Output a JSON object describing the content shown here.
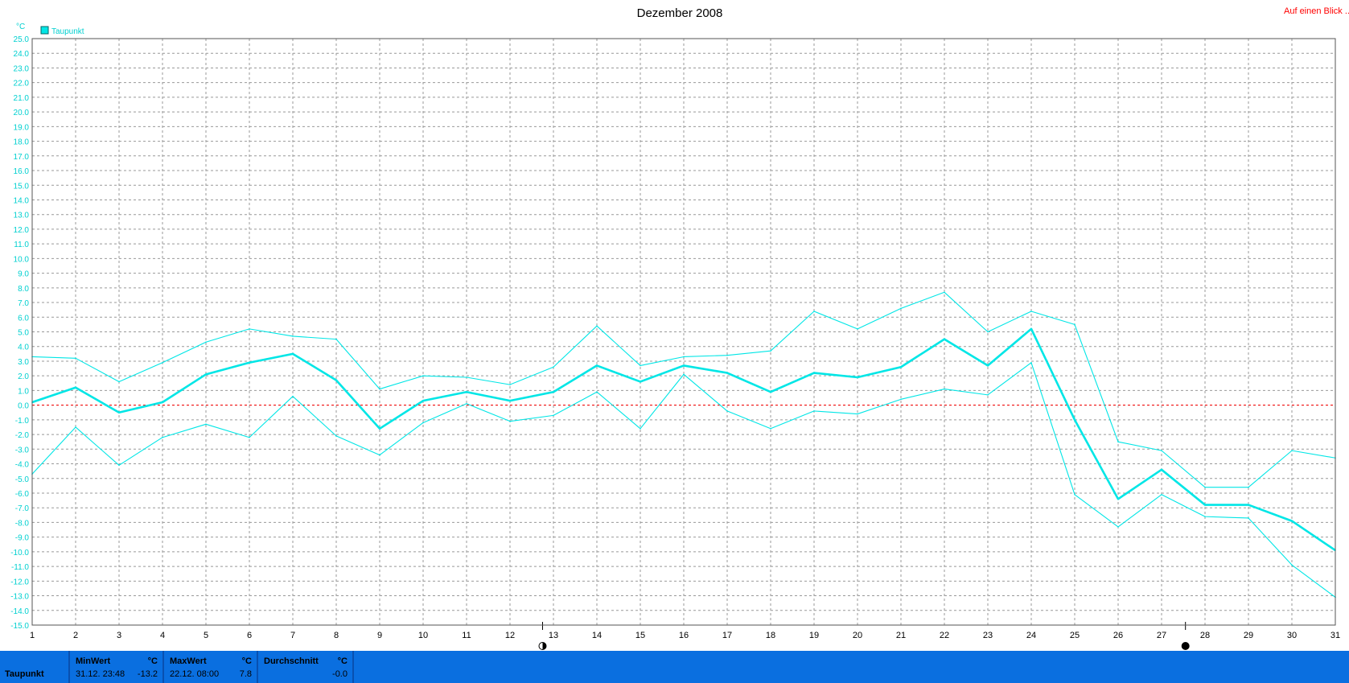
{
  "header": {
    "title": "Dezember 2008",
    "link_label": "Auf einen Blick ...",
    "unit_label": "°C",
    "legend_label": "Taupunkt"
  },
  "colors": {
    "series": "#00e6e6",
    "axis_text": "#00d0d0",
    "zero_line": "#ff0000",
    "link": "#ff0000",
    "stats_bar": "#0a6fe0"
  },
  "chart_data": {
    "type": "line",
    "title": "Dezember 2008",
    "ylabel": "°C",
    "ylim": [
      -15,
      25
    ],
    "xlim": [
      1,
      31
    ],
    "x": [
      1,
      2,
      3,
      4,
      5,
      6,
      7,
      8,
      9,
      10,
      11,
      12,
      13,
      14,
      15,
      16,
      17,
      18,
      19,
      20,
      21,
      22,
      23,
      24,
      25,
      26,
      27,
      28,
      29,
      30,
      31
    ],
    "y_ticks": [
      "25.0",
      "24.0",
      "23.0",
      "22.0",
      "21.0",
      "20.0",
      "19.0",
      "18.0",
      "17.0",
      "16.0",
      "15.0",
      "14.0",
      "13.0",
      "12.0",
      "11.0",
      "10.0",
      "9.0",
      "8.0",
      "7.0",
      "6.0",
      "5.0",
      "4.0",
      "3.0",
      "2.0",
      "1.0",
      "0.0",
      "-1.0",
      "-2.0",
      "-3.0",
      "-4.0",
      "-5.0",
      "-6.0",
      "-7.0",
      "-8.0",
      "-9.0",
      "-10.0",
      "-11.0",
      "-12.0",
      "-13.0",
      "-14.0",
      "-15.0"
    ],
    "x_ticks": [
      "1",
      "2",
      "3",
      "4",
      "5",
      "6",
      "7",
      "8",
      "9",
      "10",
      "11",
      "12",
      "13",
      "14",
      "15",
      "16",
      "17",
      "18",
      "19",
      "20",
      "21",
      "22",
      "23",
      "24",
      "25",
      "26",
      "27",
      "28",
      "29",
      "30",
      "31"
    ],
    "grid": true,
    "legend": "top-left",
    "reference_line": 0,
    "series": [
      {
        "name": "Taupunkt",
        "role": "mean",
        "values": [
          0.2,
          1.2,
          -0.5,
          0.2,
          2.1,
          2.9,
          3.5,
          1.7,
          -1.6,
          0.3,
          0.9,
          0.3,
          0.9,
          2.7,
          1.6,
          2.7,
          2.2,
          0.9,
          2.2,
          1.9,
          2.6,
          4.5,
          2.7,
          5.2,
          -1.0,
          -6.4,
          -4.4,
          -6.8,
          -6.8,
          -7.9,
          -9.9
        ]
      },
      {
        "role": "max",
        "values": [
          3.3,
          3.2,
          1.6,
          2.9,
          4.3,
          5.2,
          4.7,
          4.5,
          1.1,
          2.0,
          1.9,
          1.4,
          2.6,
          5.4,
          2.7,
          3.3,
          3.4,
          3.7,
          6.4,
          5.2,
          6.6,
          7.7,
          5.0,
          6.4,
          5.5,
          -2.5,
          -3.1,
          -5.6,
          -5.6,
          -3.1,
          -3.6
        ]
      },
      {
        "role": "min",
        "values": [
          -4.7,
          -1.5,
          -4.1,
          -2.2,
          -1.3,
          -2.2,
          0.6,
          -2.1,
          -3.4,
          -1.2,
          0.1,
          -1.1,
          -0.7,
          0.9,
          -1.6,
          2.1,
          -0.4,
          -1.6,
          -0.4,
          -0.6,
          0.4,
          1.1,
          0.7,
          2.9,
          -6.1,
          -8.3,
          -6.1,
          -7.6,
          -7.7,
          -10.9,
          -13.1
        ]
      }
    ],
    "moon_phases": [
      {
        "day": 12.75,
        "phase": "first-quarter-icon"
      },
      {
        "day": 27.55,
        "phase": "new-moon-icon"
      }
    ]
  },
  "stats": {
    "row_label": "Taupunkt",
    "min": {
      "heading": "MinWert",
      "unit": "°C",
      "when": "31.12.  23:48",
      "value": "-13.2"
    },
    "max": {
      "heading": "MaxWert",
      "unit": "°C",
      "when": "22.12.  08:00",
      "value": "7.8"
    },
    "avg": {
      "heading": "Durchschnitt",
      "unit": "°C",
      "value": "-0.0"
    }
  }
}
